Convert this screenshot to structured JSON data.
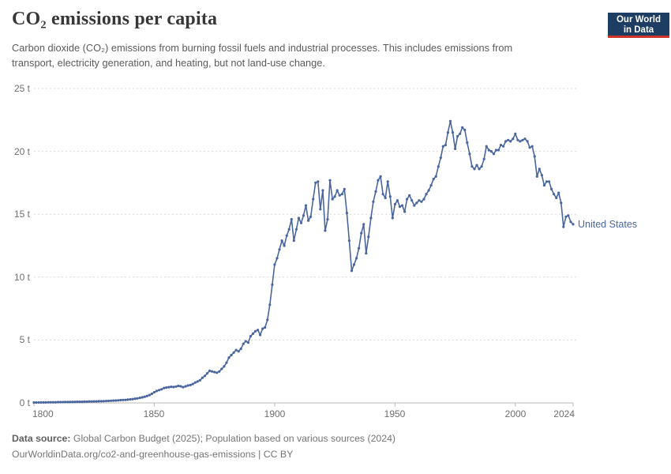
{
  "header": {
    "title": "CO₂ emissions per capita",
    "subtitle_line1": "Carbon dioxide (CO₂) emissions from burning fossil fuels and industrial processes. This includes emissions from",
    "subtitle_line2": "transport, electricity generation, and heating, but not land-use change.",
    "logo": {
      "line1": "Our World",
      "line2": "in Data",
      "bg_color": "#1d3d63",
      "accent_color": "#d0342a"
    }
  },
  "chart_data": {
    "type": "line",
    "title": "CO₂ emissions per capita",
    "unit": "t",
    "x_range": [
      1800,
      2024
    ],
    "ylim": [
      0,
      25
    ],
    "grid": "horizontal-dashed",
    "y_ticks": [
      0,
      5,
      10,
      15,
      20,
      25
    ],
    "y_tick_labels": [
      "0 t",
      "5 t",
      "10 t",
      "15 t",
      "20 t",
      "25 t"
    ],
    "x_ticks": [
      1800,
      1850,
      1900,
      1950,
      2000,
      2024
    ],
    "x_tick_labels": [
      "1800",
      "1850",
      "1900",
      "1950",
      "2000",
      "2024"
    ],
    "axis_color": "#b8b8b8",
    "grid_color": "#d9d9d9",
    "legend_position": "end-of-line",
    "series": [
      {
        "name": "United States",
        "color": "#4a669e",
        "start_year": 1800,
        "end_year": 2024,
        "values": [
          0.03,
          0.03,
          0.03,
          0.04,
          0.04,
          0.04,
          0.05,
          0.05,
          0.05,
          0.05,
          0.06,
          0.06,
          0.06,
          0.07,
          0.07,
          0.07,
          0.08,
          0.08,
          0.09,
          0.09,
          0.09,
          0.1,
          0.1,
          0.11,
          0.11,
          0.12,
          0.12,
          0.13,
          0.13,
          0.14,
          0.15,
          0.16,
          0.17,
          0.18,
          0.19,
          0.2,
          0.22,
          0.23,
          0.24,
          0.26,
          0.28,
          0.3,
          0.33,
          0.36,
          0.4,
          0.44,
          0.49,
          0.55,
          0.62,
          0.72,
          0.85,
          0.95,
          1.02,
          1.08,
          1.18,
          1.22,
          1.25,
          1.28,
          1.26,
          1.3,
          1.35,
          1.32,
          1.25,
          1.32,
          1.38,
          1.42,
          1.5,
          1.62,
          1.7,
          1.8,
          2.0,
          2.15,
          2.35,
          2.55,
          2.5,
          2.45,
          2.4,
          2.5,
          2.7,
          2.9,
          3.2,
          3.6,
          3.8,
          4.0,
          4.2,
          4.1,
          4.3,
          4.7,
          4.9,
          4.8,
          5.3,
          5.5,
          5.7,
          5.8,
          5.4,
          5.9,
          6.0,
          6.6,
          7.8,
          9.4,
          11.0,
          11.5,
          12.2,
          12.9,
          12.5,
          13.3,
          13.8,
          14.6,
          12.9,
          13.8,
          14.7,
          14.3,
          14.9,
          15.7,
          14.5,
          14.8,
          16.2,
          17.5,
          17.6,
          15.4,
          16.9,
          13.7,
          14.6,
          17.7,
          16.2,
          16.4,
          16.9,
          16.5,
          16.6,
          17.0,
          15.1,
          12.9,
          10.5,
          11.0,
          11.5,
          12.3,
          13.5,
          14.2,
          11.9,
          13.2,
          14.7,
          16.0,
          16.8,
          17.7,
          18.0,
          16.6,
          16.3,
          17.6,
          16.4,
          14.7,
          15.8,
          16.1,
          15.6,
          15.7,
          15.2,
          16.2,
          16.5,
          16.1,
          15.7,
          15.9,
          16.1,
          16.0,
          16.2,
          16.6,
          16.9,
          17.3,
          17.8,
          18.0,
          18.8,
          19.5,
          20.4,
          20.5,
          21.5,
          22.4,
          21.5,
          20.2,
          21.2,
          21.4,
          21.9,
          21.7,
          20.7,
          19.8,
          18.8,
          18.6,
          18.9,
          18.6,
          18.8,
          19.4,
          20.4,
          20.1,
          20.0,
          19.8,
          20.1,
          20.1,
          20.5,
          20.4,
          20.8,
          20.9,
          20.8,
          21.0,
          21.4,
          20.9,
          20.8,
          20.9,
          21.0,
          20.8,
          20.3,
          20.4,
          19.6,
          18.0,
          18.6,
          18.1,
          17.3,
          17.6,
          17.6,
          17.0,
          16.6,
          16.3,
          16.7,
          15.9,
          14.0,
          14.8,
          14.9,
          14.4,
          14.2
        ]
      }
    ]
  },
  "footer": {
    "source_label": "Data source:",
    "source_text": "Global Carbon Budget (2025); Population based on various sources (2024)",
    "license_line": "OurWorldinData.org/co2-and-greenhouse-gas-emissions | CC BY"
  }
}
